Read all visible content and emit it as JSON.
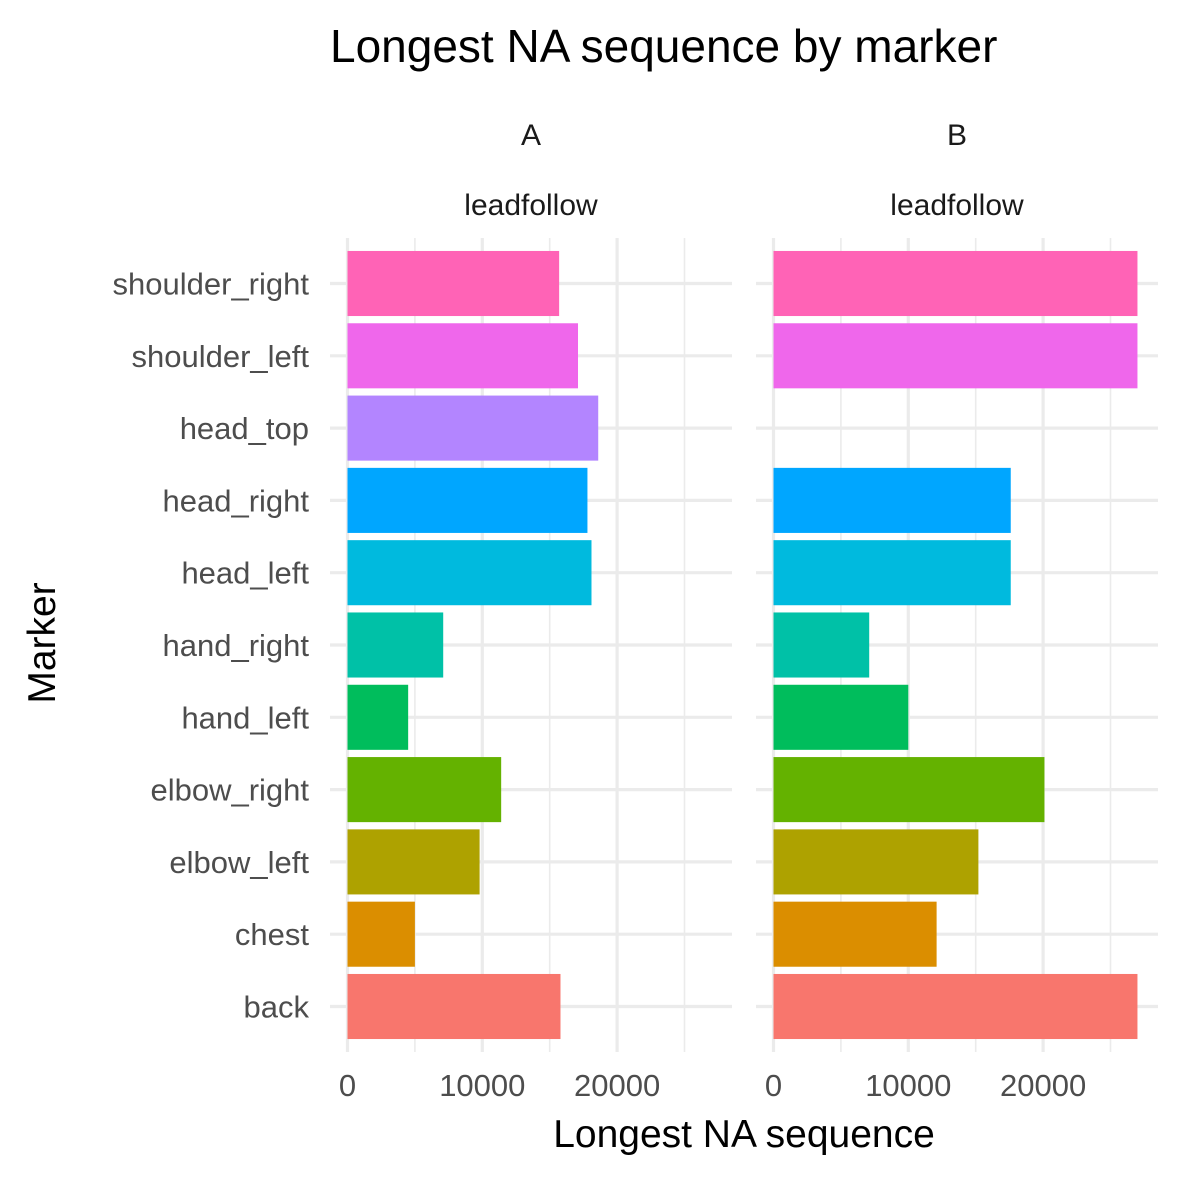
{
  "chart_data": {
    "type": "bar",
    "orientation": "horizontal",
    "title": "Longest NA sequence by marker",
    "xlabel": "Longest NA sequence",
    "ylabel": "Marker",
    "xlim": [
      0,
      27000
    ],
    "xticks": [
      0,
      10000,
      20000
    ],
    "xtick_labels": [
      "0",
      "10000",
      "20000"
    ],
    "grid": true,
    "categories": [
      "back",
      "chest",
      "elbow_left",
      "elbow_right",
      "hand_left",
      "hand_right",
      "head_left",
      "head_right",
      "head_top",
      "shoulder_left",
      "shoulder_right"
    ],
    "colors": {
      "back": "#F8766D",
      "chest": "#DB8E00",
      "elbow_left": "#AEA200",
      "elbow_right": "#64B200",
      "hand_left": "#00BD5C",
      "hand_right": "#00C1A7",
      "head_left": "#00BADE",
      "head_right": "#00A6FF",
      "head_top": "#B385FF",
      "shoulder_left": "#EF67EB",
      "shoulder_right": "#FF63B6"
    },
    "panels": [
      {
        "facet": "A",
        "subfacet": "leadfollow",
        "values": [
          15800,
          5000,
          9800,
          11400,
          4500,
          7100,
          18100,
          17800,
          18600,
          17100,
          15700
        ]
      },
      {
        "facet": "B",
        "subfacet": "leadfollow",
        "values": [
          27000,
          12100,
          15200,
          20100,
          10000,
          7100,
          17600,
          17600,
          null,
          27000,
          27000
        ]
      }
    ]
  }
}
